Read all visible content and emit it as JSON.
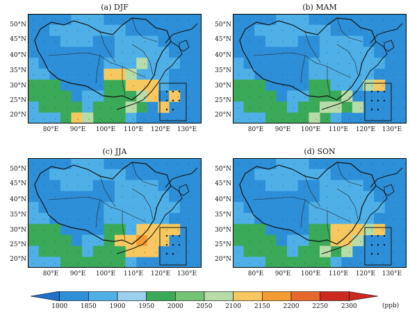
{
  "panels": [
    {
      "id": "a",
      "title": "(a) DJF",
      "hot": [
        [
          7,
          5,
          3
        ],
        [
          8,
          5,
          3
        ],
        [
          9,
          6,
          3
        ],
        [
          9,
          5,
          2
        ],
        [
          10,
          6,
          3
        ],
        [
          10,
          7,
          2
        ],
        [
          11,
          6,
          3
        ],
        [
          11,
          7,
          3
        ],
        [
          12,
          8,
          3
        ],
        [
          4,
          9,
          3
        ],
        [
          5,
          9,
          2
        ],
        [
          13,
          7,
          3
        ],
        [
          9,
          8,
          2
        ],
        [
          10,
          4,
          2
        ]
      ]
    },
    {
      "id": "b",
      "title": "(b) MAM",
      "hot": [
        [
          13,
          6,
          3
        ],
        [
          3,
          10,
          2
        ],
        [
          4,
          10,
          2
        ],
        [
          7,
          9,
          2
        ],
        [
          8,
          8,
          2
        ],
        [
          9,
          8,
          2
        ],
        [
          10,
          7,
          2
        ],
        [
          11,
          8,
          2
        ],
        [
          12,
          6,
          2
        ]
      ]
    },
    {
      "id": "c",
      "title": "(c) JJA",
      "hot": [
        [
          8,
          7,
          3
        ],
        [
          9,
          7,
          3
        ],
        [
          10,
          7,
          4
        ],
        [
          11,
          7,
          3
        ],
        [
          12,
          6,
          3
        ],
        [
          9,
          8,
          3
        ],
        [
          10,
          8,
          3
        ],
        [
          11,
          6,
          3
        ],
        [
          4,
          11,
          3
        ],
        [
          5,
          11,
          3
        ],
        [
          6,
          11,
          2
        ],
        [
          13,
          6,
          3
        ],
        [
          11,
          8,
          3
        ],
        [
          12,
          7,
          3
        ],
        [
          10,
          6,
          3
        ]
      ]
    },
    {
      "id": "d",
      "title": "(d) SON",
      "hot": [
        [
          9,
          6,
          3
        ],
        [
          10,
          6,
          3
        ],
        [
          11,
          6,
          3
        ],
        [
          9,
          7,
          3
        ],
        [
          10,
          7,
          3
        ],
        [
          11,
          7,
          2
        ],
        [
          8,
          8,
          2
        ],
        [
          3,
          11,
          3
        ],
        [
          4,
          11,
          3
        ],
        [
          5,
          11,
          3
        ],
        [
          6,
          11,
          2
        ],
        [
          13,
          6,
          3
        ],
        [
          12,
          6,
          2
        ],
        [
          10,
          8,
          2
        ]
      ]
    }
  ],
  "lat_labels": [
    "50°N",
    "45°N",
    "40°N",
    "35°N",
    "30°N",
    "25°N",
    "20°N"
  ],
  "lon_labels": [
    "80°E",
    "90°E",
    "100°E",
    "110°E",
    "120°E",
    "130°E"
  ],
  "colorbar": {
    "ticks": [
      "1800",
      "1850",
      "1900",
      "1950",
      "2000",
      "2050",
      "2100",
      "2150",
      "2200",
      "2250",
      "2300"
    ],
    "unit": "(ppb)",
    "colors": [
      "#1f6fc6",
      "#2d8fd8",
      "#4fb0e8",
      "#9bd0ee",
      "#3aaa58",
      "#74c476",
      "#b8dca8",
      "#f6c85f",
      "#f39c32",
      "#e8672a",
      "#cc2a20"
    ]
  }
}
